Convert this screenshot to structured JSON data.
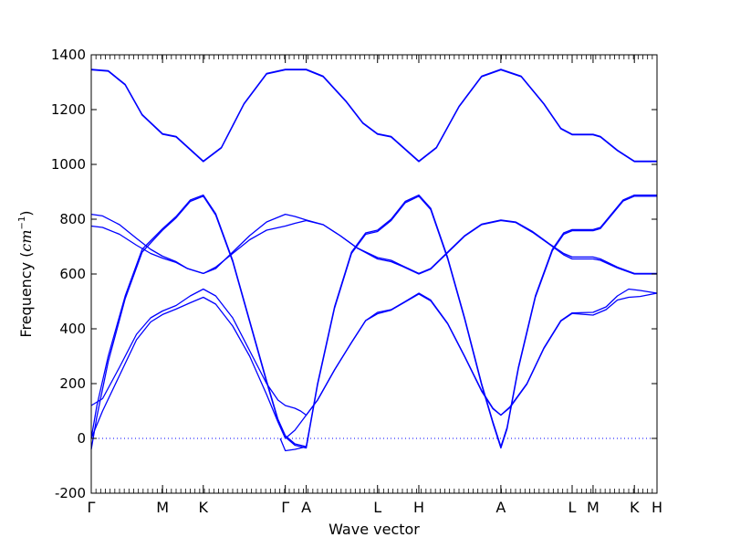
{
  "chart_data": {
    "type": "line",
    "title": "",
    "xlabel": "Wave vector",
    "ylabel_text": "Frequency (",
    "ylabel_math_base": "cm",
    "ylabel_math_exp": "−1",
    "ylabel_close": ")",
    "ylim": [
      -200,
      1400
    ],
    "yticks": [
      -200,
      0,
      200,
      400,
      600,
      800,
      1000,
      1200,
      1400
    ],
    "xlim": [
      0,
      100
    ],
    "high_symmetry_points": [
      {
        "label": "Γ",
        "x": 0
      },
      {
        "label": "M",
        "x": 12.6
      },
      {
        "label": "K",
        "x": 19.8
      },
      {
        "label": "Γ",
        "x": 34.3
      },
      {
        "label": "A",
        "x": 38.0
      },
      {
        "label": "L",
        "x": 50.6
      },
      {
        "label": "H",
        "x": 57.9
      },
      {
        "label": "A",
        "x": 72.4
      },
      {
        "label": "L",
        "x": 85.0
      },
      {
        "label": "M",
        "x": 88.7
      },
      {
        "label": "K",
        "x": 96.0
      },
      {
        "label": "H",
        "x": 100
      }
    ],
    "zero_line": {
      "y": 0,
      "style": "dotted"
    },
    "series_color": "#0000ff",
    "series": [
      {
        "points": [
          [
            0,
            1345
          ],
          [
            3,
            1340
          ],
          [
            6,
            1290
          ],
          [
            9,
            1180
          ],
          [
            12.6,
            1110
          ],
          [
            15,
            1100
          ],
          [
            19.8,
            1010
          ],
          [
            23,
            1060
          ],
          [
            27,
            1220
          ],
          [
            31,
            1330
          ],
          [
            34.3,
            1345
          ],
          [
            38,
            1345
          ],
          [
            41,
            1320
          ],
          [
            45,
            1230
          ],
          [
            48,
            1150
          ],
          [
            50.6,
            1110
          ],
          [
            53,
            1100
          ],
          [
            57.9,
            1010
          ],
          [
            61,
            1060
          ],
          [
            65,
            1210
          ],
          [
            69,
            1320
          ],
          [
            72.4,
            1345
          ],
          [
            76,
            1320
          ],
          [
            80,
            1220
          ],
          [
            83,
            1130
          ],
          [
            85,
            1108
          ],
          [
            88.7,
            1108
          ],
          [
            90,
            1100
          ],
          [
            93,
            1050
          ],
          [
            96,
            1010
          ],
          [
            100,
            1010
          ]
        ]
      },
      {
        "points": [
          [
            0,
            1347
          ],
          [
            3,
            1342
          ],
          [
            6,
            1292
          ],
          [
            9,
            1182
          ],
          [
            12.6,
            1112
          ],
          [
            15,
            1102
          ],
          [
            19.8,
            1012
          ],
          [
            23,
            1062
          ],
          [
            27,
            1222
          ],
          [
            31,
            1332
          ],
          [
            34.3,
            1347
          ],
          [
            38,
            1347
          ],
          [
            41,
            1322
          ],
          [
            45,
            1232
          ],
          [
            48,
            1152
          ],
          [
            50.6,
            1112
          ],
          [
            53,
            1102
          ],
          [
            57.9,
            1012
          ],
          [
            61,
            1062
          ],
          [
            65,
            1212
          ],
          [
            69,
            1322
          ],
          [
            72.4,
            1347
          ],
          [
            76,
            1322
          ],
          [
            80,
            1222
          ],
          [
            83,
            1132
          ],
          [
            85,
            1110
          ],
          [
            88.7,
            1110
          ],
          [
            90,
            1102
          ],
          [
            93,
            1052
          ],
          [
            96,
            1012
          ],
          [
            100,
            1012
          ]
        ]
      },
      {
        "points": [
          [
            0,
            0
          ],
          [
            1,
            120
          ],
          [
            3,
            300
          ],
          [
            6,
            520
          ],
          [
            9,
            690
          ],
          [
            12.6,
            765
          ],
          [
            15,
            810
          ],
          [
            17.5,
            870
          ],
          [
            19.8,
            888
          ],
          [
            22,
            820
          ],
          [
            25,
            650
          ],
          [
            28,
            430
          ],
          [
            31,
            210
          ],
          [
            33,
            70
          ],
          [
            34.3,
            10
          ],
          [
            36,
            -20
          ],
          [
            38,
            -30
          ],
          [
            40,
            200
          ],
          [
            43,
            480
          ],
          [
            46,
            680
          ],
          [
            48.5,
            750
          ],
          [
            50.6,
            760
          ],
          [
            53,
            800
          ],
          [
            55.5,
            865
          ],
          [
            57.9,
            888
          ],
          [
            60,
            840
          ],
          [
            63,
            660
          ],
          [
            66,
            440
          ],
          [
            69,
            200
          ],
          [
            71,
            60
          ],
          [
            72.4,
            -30
          ],
          [
            73.5,
            40
          ],
          [
            75.5,
            260
          ],
          [
            78.5,
            520
          ],
          [
            81.5,
            690
          ],
          [
            83.5,
            750
          ],
          [
            85,
            762
          ],
          [
            88.7,
            762
          ],
          [
            90,
            770
          ],
          [
            92,
            820
          ],
          [
            94,
            870
          ],
          [
            96,
            888
          ],
          [
            100,
            888
          ]
        ]
      },
      {
        "points": [
          [
            0,
            -40
          ],
          [
            1,
            80
          ],
          [
            3,
            280
          ],
          [
            6,
            510
          ],
          [
            9,
            680
          ],
          [
            12.6,
            760
          ],
          [
            15,
            805
          ],
          [
            17.5,
            865
          ],
          [
            19.8,
            884
          ],
          [
            22,
            815
          ],
          [
            25,
            645
          ],
          [
            28,
            425
          ],
          [
            31,
            205
          ],
          [
            33,
            65
          ],
          [
            34.3,
            5
          ],
          [
            36,
            -25
          ],
          [
            38,
            -35
          ],
          [
            40,
            195
          ],
          [
            43,
            475
          ],
          [
            46,
            675
          ],
          [
            48.5,
            745
          ],
          [
            50.6,
            755
          ],
          [
            53,
            795
          ],
          [
            55.5,
            860
          ],
          [
            57.9,
            884
          ],
          [
            60,
            835
          ],
          [
            63,
            655
          ],
          [
            66,
            435
          ],
          [
            69,
            195
          ],
          [
            71,
            55
          ],
          [
            72.4,
            -35
          ],
          [
            73.5,
            35
          ],
          [
            75.5,
            255
          ],
          [
            78.5,
            515
          ],
          [
            81.5,
            685
          ],
          [
            83.5,
            745
          ],
          [
            85,
            758
          ],
          [
            88.7,
            758
          ],
          [
            90,
            766
          ],
          [
            92,
            816
          ],
          [
            94,
            866
          ],
          [
            96,
            884
          ],
          [
            100,
            884
          ]
        ]
      },
      {
        "points": [
          [
            0,
            818
          ],
          [
            2,
            812
          ],
          [
            5,
            780
          ],
          [
            8,
            730
          ],
          [
            10.5,
            690
          ],
          [
            12.6,
            665
          ],
          [
            15,
            645
          ],
          [
            17,
            620
          ],
          [
            19.8,
            602
          ],
          [
            22,
            620
          ],
          [
            25,
            680
          ],
          [
            28,
            740
          ],
          [
            31,
            790
          ],
          [
            34.3,
            818
          ],
          [
            36,
            810
          ],
          [
            38,
            797
          ],
          [
            41,
            780
          ],
          [
            44,
            740
          ],
          [
            47,
            695
          ],
          [
            50.6,
            660
          ],
          [
            53,
            650
          ],
          [
            55,
            630
          ],
          [
            57.9,
            602
          ],
          [
            60,
            620
          ],
          [
            63,
            680
          ],
          [
            66,
            740
          ],
          [
            69,
            782
          ],
          [
            72.4,
            797
          ],
          [
            75,
            790
          ],
          [
            78,
            755
          ],
          [
            81,
            710
          ],
          [
            83.5,
            675
          ],
          [
            85,
            662
          ],
          [
            88.7,
            662
          ],
          [
            90,
            655
          ],
          [
            93,
            625
          ],
          [
            96,
            602
          ],
          [
            100,
            602
          ]
        ]
      },
      {
        "points": [
          [
            0,
            775
          ],
          [
            2,
            770
          ],
          [
            5,
            745
          ],
          [
            8,
            705
          ],
          [
            10.5,
            675
          ],
          [
            12.6,
            658
          ],
          [
            15,
            642
          ],
          [
            17,
            620
          ],
          [
            19.8,
            602
          ],
          [
            22,
            625
          ],
          [
            25,
            675
          ],
          [
            28,
            725
          ],
          [
            31,
            760
          ],
          [
            34.3,
            775
          ],
          [
            36,
            785
          ],
          [
            38,
            795
          ],
          [
            41,
            780
          ],
          [
            44,
            740
          ],
          [
            47,
            695
          ],
          [
            50.6,
            655
          ],
          [
            53,
            645
          ],
          [
            55,
            628
          ],
          [
            57.9,
            600
          ],
          [
            60,
            618
          ],
          [
            63,
            678
          ],
          [
            66,
            738
          ],
          [
            69,
            780
          ],
          [
            72.4,
            795
          ],
          [
            75,
            788
          ],
          [
            78,
            752
          ],
          [
            81,
            708
          ],
          [
            83.5,
            670
          ],
          [
            85,
            655
          ],
          [
            88.7,
            655
          ],
          [
            90,
            650
          ],
          [
            93,
            622
          ],
          [
            96,
            600
          ],
          [
            100,
            600
          ]
        ]
      },
      {
        "points": [
          [
            0,
            120
          ],
          [
            2,
            145
          ],
          [
            5,
            260
          ],
          [
            8,
            380
          ],
          [
            10.5,
            440
          ],
          [
            12.6,
            465
          ],
          [
            15,
            485
          ],
          [
            17.5,
            520
          ],
          [
            19.8,
            545
          ],
          [
            22,
            520
          ],
          [
            25,
            440
          ],
          [
            28,
            320
          ],
          [
            31,
            200
          ],
          [
            33,
            140
          ],
          [
            34.3,
            120
          ],
          [
            36,
            110
          ],
          [
            37,
            100
          ],
          [
            38,
            85
          ],
          [
            40,
            140
          ],
          [
            43,
            250
          ],
          [
            46,
            350
          ],
          [
            48.5,
            430
          ],
          [
            50.6,
            460
          ],
          [
            53,
            470
          ],
          [
            55.5,
            500
          ],
          [
            57.9,
            530
          ],
          [
            60,
            505
          ],
          [
            63,
            420
          ],
          [
            66,
            300
          ],
          [
            69,
            175
          ],
          [
            71,
            110
          ],
          [
            72.4,
            85
          ],
          [
            74,
            115
          ],
          [
            77,
            200
          ],
          [
            80,
            330
          ],
          [
            83,
            430
          ],
          [
            85,
            458
          ],
          [
            88.7,
            460
          ],
          [
            91,
            480
          ],
          [
            93,
            520
          ],
          [
            95,
            545
          ],
          [
            97,
            540
          ],
          [
            100,
            530
          ]
        ]
      },
      {
        "points": [
          [
            0,
            0
          ],
          [
            2,
            100
          ],
          [
            5,
            230
          ],
          [
            8,
            360
          ],
          [
            10.5,
            425
          ],
          [
            12.6,
            452
          ],
          [
            15,
            472
          ],
          [
            17.5,
            495
          ],
          [
            19.8,
            515
          ],
          [
            22,
            490
          ],
          [
            25,
            410
          ],
          [
            28,
            300
          ],
          [
            31,
            160
          ],
          [
            33,
            60
          ],
          [
            34.3,
            0
          ],
          [
            36,
            30
          ],
          [
            38,
            85
          ],
          [
            40,
            140
          ],
          [
            43,
            250
          ],
          [
            46,
            350
          ],
          [
            48.5,
            430
          ],
          [
            50.6,
            455
          ],
          [
            53,
            468
          ],
          [
            55.5,
            498
          ],
          [
            57.9,
            527
          ],
          [
            60,
            502
          ],
          [
            63,
            418
          ],
          [
            66,
            298
          ],
          [
            69,
            172
          ],
          [
            71,
            108
          ],
          [
            72.4,
            85
          ],
          [
            74,
            112
          ],
          [
            77,
            198
          ],
          [
            80,
            328
          ],
          [
            83,
            428
          ],
          [
            85,
            456
          ],
          [
            88.7,
            450
          ],
          [
            91,
            470
          ],
          [
            93,
            505
          ],
          [
            95,
            515
          ],
          [
            97,
            518
          ],
          [
            100,
            530
          ]
        ]
      },
      {
        "points": [
          [
            33.4,
            0
          ],
          [
            34.3,
            -45
          ],
          [
            36,
            -40
          ],
          [
            38,
            -30
          ],
          [
            38.3,
            0
          ]
        ]
      }
    ]
  }
}
